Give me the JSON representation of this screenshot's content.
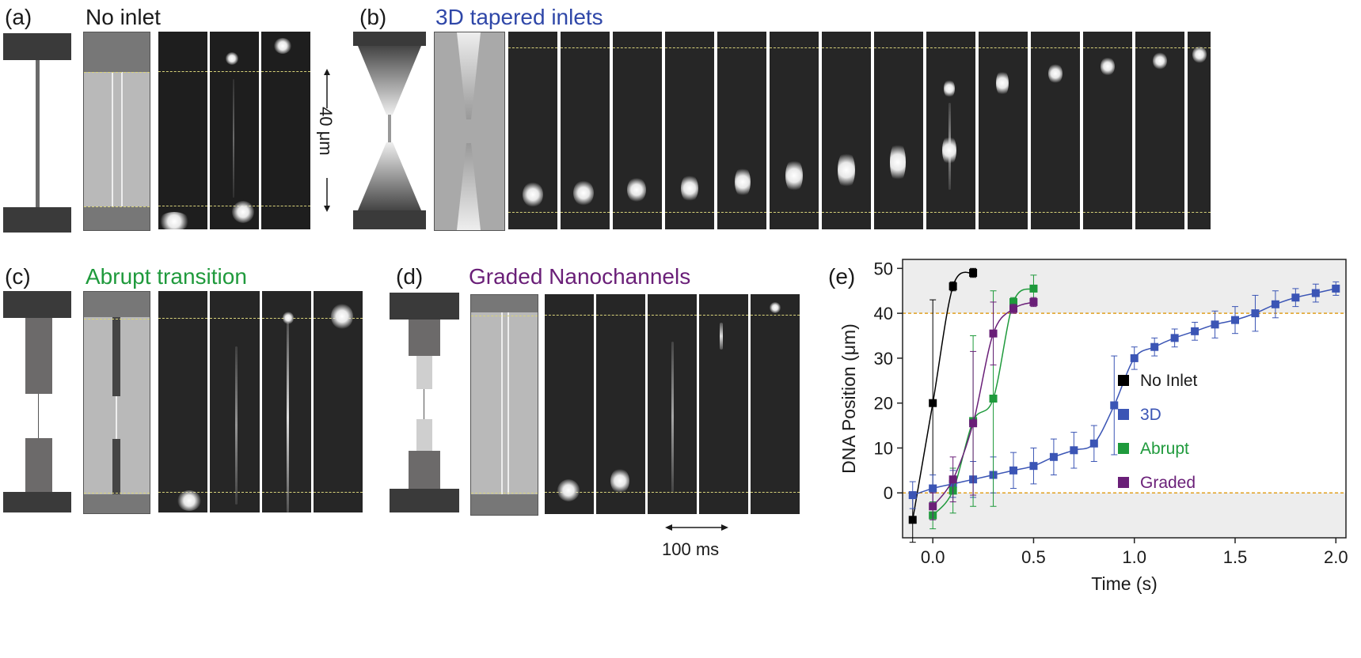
{
  "panels": {
    "a": {
      "label": "(a)",
      "title": "No inlet",
      "scale": "40 μm"
    },
    "b": {
      "label": "(b)",
      "title": "3D tapered inlets"
    },
    "c": {
      "label": "(c)",
      "title": "Abrupt transition"
    },
    "d": {
      "label": "(d)",
      "title": "Graded Nanochannels",
      "time_scale": "100 ms"
    },
    "e": {
      "label": "(e)"
    }
  },
  "colors": {
    "no_inlet": "#000000",
    "3d": "#3b55b5",
    "abrupt": "#1f9a3c",
    "graded": "#6a1f78",
    "guide_line": "#e0a020"
  },
  "chart_data": {
    "type": "line",
    "xlabel": "Time (s)",
    "ylabel": "DNA Position (μm)",
    "xlim": [
      -0.15,
      2.05
    ],
    "ylim": [
      -10,
      52
    ],
    "xticks": [
      "0.0",
      "0.5",
      "1.0",
      "1.5",
      "2.0"
    ],
    "xtick_values": [
      0,
      0.5,
      1.0,
      1.5,
      2.0
    ],
    "yticks": [
      "0",
      "10",
      "20",
      "30",
      "40",
      "50"
    ],
    "ytick_values": [
      0,
      10,
      20,
      30,
      40,
      50
    ],
    "reference_lines": [
      0,
      40
    ],
    "legend_position": "right",
    "series": [
      {
        "name": "No Inlet",
        "color": "#000000",
        "x": [
          -0.1,
          0.0,
          0.1,
          0.2
        ],
        "y": [
          -6,
          20,
          46,
          49
        ],
        "err": [
          5,
          23,
          1,
          1
        ]
      },
      {
        "name": "3D",
        "color": "#3b55b5",
        "x": [
          -0.1,
          0.0,
          0.1,
          0.2,
          0.3,
          0.4,
          0.5,
          0.6,
          0.7,
          0.8,
          0.9,
          1.0,
          1.1,
          1.2,
          1.3,
          1.4,
          1.5,
          1.6,
          1.7,
          1.8,
          1.9,
          2.0
        ],
        "y": [
          -0.5,
          1,
          2,
          3,
          4,
          5,
          6,
          8,
          9.5,
          11,
          19.5,
          30,
          32.5,
          34.5,
          36,
          37.5,
          38.5,
          40,
          42,
          43.5,
          44.5,
          45.5
        ],
        "err": [
          3,
          3,
          3,
          4,
          4,
          4,
          4,
          4,
          4,
          4,
          11,
          2.5,
          2,
          2,
          2,
          3,
          3,
          4,
          3,
          2,
          2,
          1.5
        ]
      },
      {
        "name": "Abrupt",
        "color": "#1f9a3c",
        "x": [
          0.0,
          0.1,
          0.2,
          0.3,
          0.4,
          0.5
        ],
        "y": [
          -5,
          0.5,
          16,
          21,
          42.5,
          45.5
        ],
        "err": [
          3,
          5,
          19,
          24,
          1,
          3
        ]
      },
      {
        "name": "Graded",
        "color": "#6a1f78",
        "x": [
          0.0,
          0.1,
          0.2,
          0.3,
          0.4,
          0.5
        ],
        "y": [
          -3,
          3,
          15.5,
          35.5,
          41,
          42.5
        ],
        "err": [
          3,
          5,
          16,
          7,
          1,
          1
        ]
      }
    ]
  }
}
